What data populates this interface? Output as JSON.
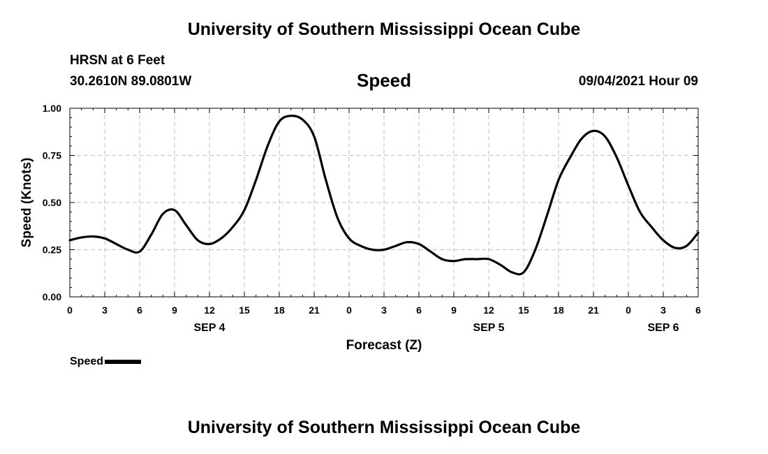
{
  "header": {
    "title": "University of Southern Mississippi Ocean Cube",
    "station": "HRSN at 6 Feet",
    "coords": "30.2610N  89.0801W",
    "variable": "Speed",
    "datetime": "09/04/2021 Hour 09"
  },
  "footer": {
    "title": "University of Southern Mississippi Ocean Cube"
  },
  "legend": {
    "label": "Speed"
  },
  "chart_data": {
    "type": "line",
    "xlabel": "Forecast (Z)",
    "ylabel": "Speed (Knots)",
    "xlim": [
      0,
      54
    ],
    "ylim": [
      0,
      1
    ],
    "x_tick_hours": [
      0,
      3,
      6,
      9,
      12,
      15,
      18,
      21,
      24,
      27,
      30,
      33,
      36,
      39,
      42,
      45,
      48,
      51,
      54
    ],
    "x_tick_labels": [
      "0",
      "3",
      "6",
      "9",
      "12",
      "15",
      "18",
      "21",
      "0",
      "3",
      "6",
      "9",
      "12",
      "15",
      "18",
      "21",
      "0",
      "3",
      "6"
    ],
    "y_ticks": [
      0.0,
      0.25,
      0.5,
      0.75,
      1.0
    ],
    "y_tick_labels": [
      "0.00",
      "0.25",
      "0.50",
      "0.75",
      "1.00"
    ],
    "day_labels": [
      {
        "hour": 12,
        "label": "SEP 4"
      },
      {
        "hour": 36,
        "label": "SEP 5"
      },
      {
        "hour": 51,
        "label": "SEP 6"
      }
    ],
    "grid": true,
    "legend_position": "bottom-left",
    "series": [
      {
        "name": "Speed",
        "color": "#000000",
        "x": [
          0,
          1,
          2,
          3,
          4,
          5,
          6,
          7,
          8,
          9,
          10,
          11,
          12,
          13,
          14,
          15,
          16,
          17,
          18,
          19,
          20,
          21,
          22,
          23,
          24,
          25,
          26,
          27,
          28,
          29,
          30,
          31,
          32,
          33,
          34,
          35,
          36,
          37,
          38,
          39,
          40,
          41,
          42,
          43,
          44,
          45,
          46,
          47,
          48,
          49,
          50,
          51,
          52,
          53,
          54
        ],
        "y": [
          0.3,
          0.315,
          0.32,
          0.31,
          0.28,
          0.25,
          0.24,
          0.33,
          0.44,
          0.46,
          0.38,
          0.3,
          0.28,
          0.31,
          0.37,
          0.46,
          0.62,
          0.8,
          0.93,
          0.96,
          0.94,
          0.85,
          0.62,
          0.42,
          0.31,
          0.27,
          0.25,
          0.25,
          0.27,
          0.29,
          0.28,
          0.24,
          0.2,
          0.19,
          0.2,
          0.2,
          0.2,
          0.17,
          0.13,
          0.13,
          0.25,
          0.43,
          0.62,
          0.74,
          0.84,
          0.88,
          0.85,
          0.74,
          0.59,
          0.45,
          0.37,
          0.3,
          0.26,
          0.27,
          0.34
        ]
      }
    ]
  }
}
